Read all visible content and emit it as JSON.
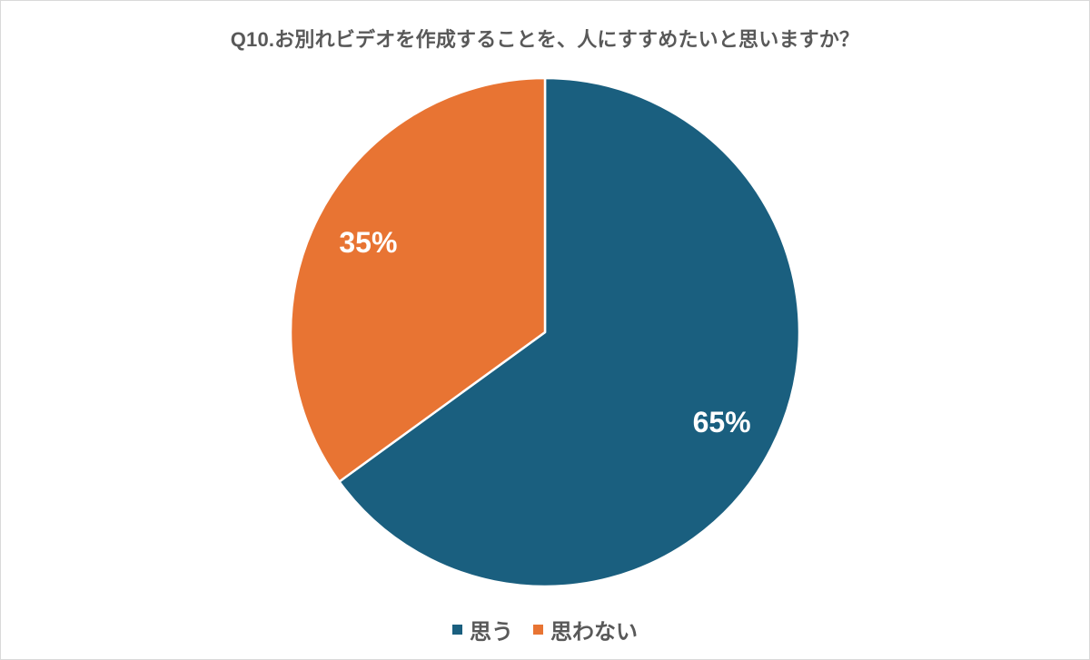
{
  "chart_data": {
    "type": "pie",
    "title": "Q10.お別れビデオを作成することを、人にすすめたいと思いますか？",
    "categories": [
      "思う",
      "思わない"
    ],
    "values": [
      65,
      35
    ],
    "labels": [
      "65%",
      "35%"
    ],
    "colors": [
      "#1a5f7f",
      "#e87433"
    ],
    "start_angle_deg": 0,
    "direction": "clockwise",
    "legend_position": "bottom"
  },
  "title": "Q10.お別れビデオを作成することを、人にすすめたいと思いますか？",
  "slices": [
    {
      "label": "思う",
      "value": 65,
      "display": "65%",
      "color": "#1a5f7f"
    },
    {
      "label": "思わない",
      "value": 35,
      "display": "35%",
      "color": "#e87433"
    }
  ],
  "legend": {
    "items": [
      {
        "label": "思う",
        "color": "#1a5f7f"
      },
      {
        "label": "思わない",
        "color": "#e87433"
      }
    ]
  }
}
